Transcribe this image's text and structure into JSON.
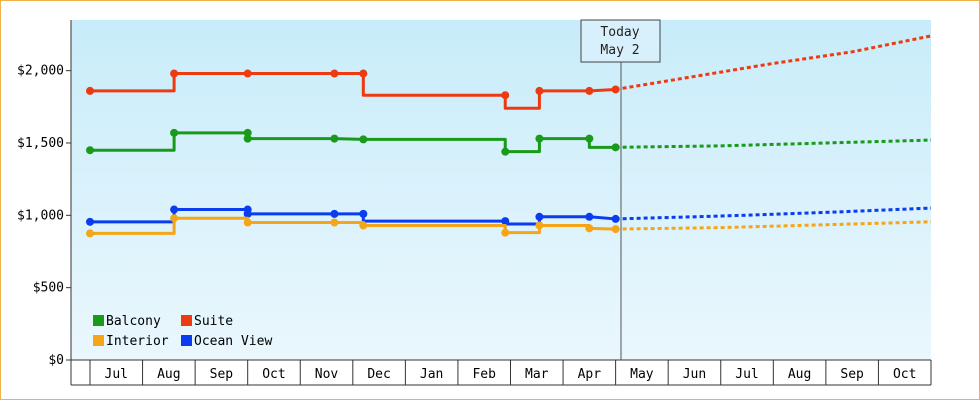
{
  "chart_data": {
    "type": "line",
    "y_ticks": [
      "$0",
      "$500",
      "$1,000",
      "$1,500",
      "$2,000"
    ],
    "y_tick_values": [
      0,
      500,
      1000,
      1500,
      2000
    ],
    "ylim": [
      0,
      2350
    ],
    "x_months": [
      "Jul",
      "Aug",
      "Sep",
      "Oct",
      "Nov",
      "Dec",
      "Jan",
      "Feb",
      "Mar",
      "Apr",
      "May",
      "Jun",
      "Jul",
      "Aug",
      "Sep",
      "Oct"
    ],
    "today_label": {
      "line1": "Today",
      "line2": "May 2"
    },
    "legend": [
      "Balcony",
      "Suite",
      "Interior",
      "Ocean View"
    ],
    "colors": {
      "Balcony": "#1a9a1a",
      "Suite": "#ee3a10",
      "Interior": "#f5a515",
      "Ocean View": "#0a3cf0",
      "background_top": "#c8ecfa",
      "background_bottom": "#eaf7fd",
      "frame": "#f0b04a"
    },
    "grid": false,
    "legend_position": "bottom-left",
    "series": [
      {
        "name": "Suite",
        "history": [
          [
            0,
            1860
          ],
          [
            1.6,
            1860
          ],
          [
            1.6,
            1980
          ],
          [
            3.0,
            1980
          ],
          [
            4.65,
            1980
          ],
          [
            5.2,
            1980
          ],
          [
            5.2,
            1830
          ],
          [
            7.9,
            1830
          ],
          [
            7.9,
            1740
          ],
          [
            8.55,
            1740
          ],
          [
            8.55,
            1860
          ],
          [
            9.5,
            1860
          ],
          [
            10.0,
            1870
          ]
        ],
        "markers": [
          [
            0,
            1860
          ],
          [
            1.6,
            1980
          ],
          [
            3.0,
            1980
          ],
          [
            4.65,
            1980
          ],
          [
            5.2,
            1980
          ],
          [
            7.9,
            1830
          ],
          [
            8.55,
            1860
          ],
          [
            9.5,
            1860
          ],
          [
            10.0,
            1870
          ]
        ],
        "forecast": [
          [
            10.0,
            1870
          ],
          [
            11.5,
            1960
          ],
          [
            13.0,
            2050
          ],
          [
            14.5,
            2130
          ],
          [
            16.0,
            2240
          ]
        ]
      },
      {
        "name": "Balcony",
        "history": [
          [
            0,
            1450
          ],
          [
            1.6,
            1450
          ],
          [
            1.6,
            1570
          ],
          [
            3.0,
            1570
          ],
          [
            3.0,
            1530
          ],
          [
            4.65,
            1530
          ],
          [
            5.2,
            1525
          ],
          [
            7.9,
            1525
          ],
          [
            7.9,
            1440
          ],
          [
            8.55,
            1440
          ],
          [
            8.55,
            1530
          ],
          [
            9.5,
            1530
          ],
          [
            9.5,
            1470
          ],
          [
            10.0,
            1470
          ]
        ],
        "markers": [
          [
            0,
            1450
          ],
          [
            1.6,
            1570
          ],
          [
            3.0,
            1570
          ],
          [
            3.0,
            1530
          ],
          [
            4.65,
            1530
          ],
          [
            5.2,
            1525
          ],
          [
            7.9,
            1440
          ],
          [
            8.55,
            1530
          ],
          [
            9.5,
            1530
          ],
          [
            10.0,
            1470
          ]
        ],
        "forecast": [
          [
            10.0,
            1470
          ],
          [
            12.0,
            1480
          ],
          [
            14.0,
            1500
          ],
          [
            16.0,
            1520
          ]
        ]
      },
      {
        "name": "Ocean View",
        "history": [
          [
            0,
            955
          ],
          [
            1.6,
            955
          ],
          [
            1.6,
            1040
          ],
          [
            3.0,
            1040
          ],
          [
            3.0,
            1010
          ],
          [
            4.65,
            1010
          ],
          [
            5.2,
            1010
          ],
          [
            5.2,
            960
          ],
          [
            7.9,
            960
          ],
          [
            7.9,
            940
          ],
          [
            8.55,
            940
          ],
          [
            8.55,
            990
          ],
          [
            9.5,
            990
          ],
          [
            10.0,
            975
          ]
        ],
        "markers": [
          [
            0,
            955
          ],
          [
            1.6,
            1040
          ],
          [
            3.0,
            1040
          ],
          [
            3.0,
            1010
          ],
          [
            4.65,
            1010
          ],
          [
            5.2,
            1010
          ],
          [
            7.9,
            960
          ],
          [
            8.55,
            990
          ],
          [
            9.5,
            990
          ],
          [
            10.0,
            975
          ]
        ],
        "forecast": [
          [
            10.0,
            975
          ],
          [
            12.0,
            995
          ],
          [
            14.0,
            1020
          ],
          [
            16.0,
            1050
          ]
        ]
      },
      {
        "name": "Interior",
        "history": [
          [
            0,
            875
          ],
          [
            1.6,
            875
          ],
          [
            1.6,
            980
          ],
          [
            3.0,
            980
          ],
          [
            3.0,
            950
          ],
          [
            4.65,
            950
          ],
          [
            5.2,
            950
          ],
          [
            5.2,
            930
          ],
          [
            7.9,
            930
          ],
          [
            7.9,
            880
          ],
          [
            8.55,
            880
          ],
          [
            8.55,
            930
          ],
          [
            9.5,
            930
          ],
          [
            9.5,
            910
          ],
          [
            10.0,
            905
          ]
        ],
        "markers": [
          [
            0,
            875
          ],
          [
            1.6,
            980
          ],
          [
            3.0,
            950
          ],
          [
            4.65,
            950
          ],
          [
            5.2,
            930
          ],
          [
            7.9,
            880
          ],
          [
            8.55,
            930
          ],
          [
            9.5,
            910
          ],
          [
            10.0,
            905
          ]
        ],
        "forecast": [
          [
            10.0,
            905
          ],
          [
            12.0,
            915
          ],
          [
            14.0,
            935
          ],
          [
            16.0,
            955
          ]
        ]
      }
    ]
  }
}
